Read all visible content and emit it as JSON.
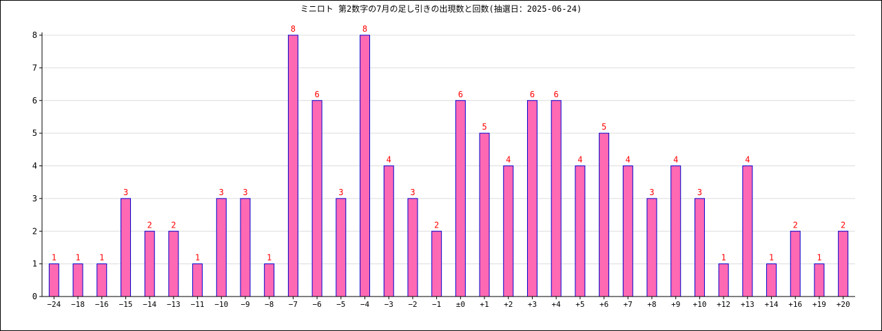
{
  "chart_data": {
    "type": "bar",
    "title": "ミニロト 第2数字の7月の足し引きの出現数と回数(抽選日：2025-06-24)",
    "xlabel": "",
    "ylabel": "",
    "ylim": [
      0,
      8
    ],
    "yticks": [
      0,
      1,
      2,
      3,
      4,
      5,
      6,
      7,
      8
    ],
    "grid": true,
    "legend": "none",
    "categories": [
      "−24",
      "−18",
      "−16",
      "−15",
      "−14",
      "−13",
      "−11",
      "−10",
      "−9",
      "−8",
      "−7",
      "−6",
      "−5",
      "−4",
      "−3",
      "−2",
      "−1",
      "±0",
      "+1",
      "+2",
      "+3",
      "+4",
      "+5",
      "+6",
      "+7",
      "+8",
      "+9",
      "+10",
      "+12",
      "+13",
      "+14",
      "+16",
      "+19",
      "+20"
    ],
    "values": [
      1,
      1,
      1,
      3,
      2,
      2,
      1,
      3,
      3,
      1,
      8,
      6,
      3,
      8,
      4,
      3,
      2,
      6,
      5,
      4,
      6,
      6,
      4,
      5,
      4,
      3,
      4,
      3,
      1,
      4,
      1,
      2,
      1,
      2
    ],
    "colors": {
      "bar_fill": "#ff69b4",
      "bar_stroke": "#0000cc",
      "label": "#ff0000",
      "grid": "#dcdcdc",
      "axis": "#000000",
      "text": "#000000"
    }
  }
}
